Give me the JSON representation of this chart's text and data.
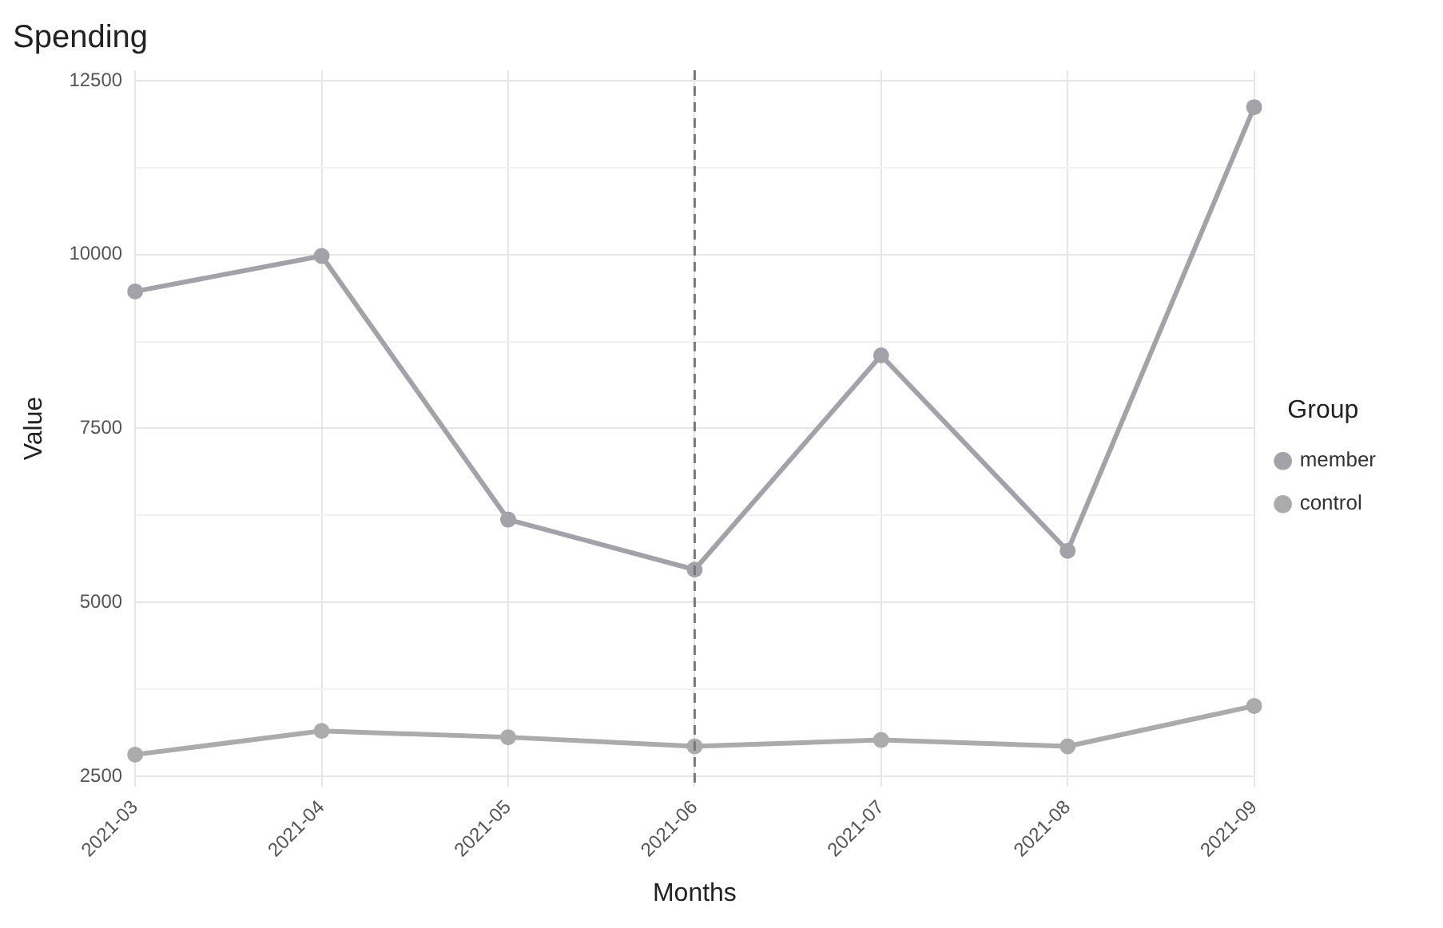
{
  "chart_data": {
    "type": "line",
    "title": "Spending",
    "xlabel": "Months",
    "ylabel": "Value",
    "legend_title": "Group",
    "categories": [
      "2021-03",
      "2021-04",
      "2021-05",
      "2021-06",
      "2021-07",
      "2021-08",
      "2021-09"
    ],
    "series": [
      {
        "name": "member",
        "color": "#a2a2a8",
        "values": [
          9470,
          9980,
          6190,
          5470,
          8550,
          5740,
          12120
        ]
      },
      {
        "name": "control",
        "color": "#ababab",
        "values": [
          2810,
          3150,
          3060,
          2930,
          3020,
          2930,
          3510
        ]
      }
    ],
    "ylim": [
      2350,
      12650
    ],
    "yticks": [
      2500,
      {
        "value": 3750,
        "label": null
      },
      5000,
      {
        "value": 6250,
        "label": null
      },
      7500,
      {
        "value": 8750,
        "label": null
      },
      10000,
      {
        "value": 11250,
        "label": null
      },
      12500
    ],
    "ref_lines": [
      {
        "axis": "x",
        "value": "2021-06",
        "color": "#777777",
        "line_style": "dashed"
      }
    ],
    "grid": true,
    "legend": "right",
    "marker": "circle",
    "line_style": "solid"
  }
}
